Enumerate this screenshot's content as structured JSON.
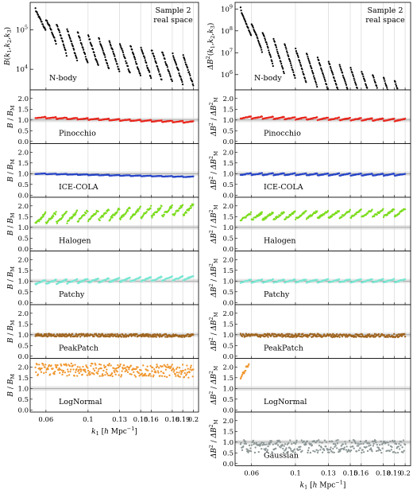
{
  "figure": {
    "corner_label_line1": "Sample 2",
    "corner_label_line2": "real space",
    "x_axis_label": "k",
    "x_axis_label_sub": "1",
    "x_axis_label_units": " [h Mpc",
    "x_axis_label_units_exp": "−1",
    "x_axis_label_close": "]"
  },
  "colors": {
    "N-body": "#000000",
    "Pinocchio": "#e8281e",
    "ICE-COLA": "#2846c8",
    "Halogen": "#7cdc1e",
    "Patchy": "#78e6d2",
    "PeakPatch": "#a0641e",
    "LogNormal": "#f0962d",
    "Gaussian": "#8c9696",
    "gridline": "#d0d0d0",
    "band": "#e6e6e6"
  },
  "chart_data": [
    {
      "type": "scatter",
      "panel": "left",
      "title": "",
      "xlabel": "k1 [h Mpc^-1]",
      "x_ticks": [
        0.06,
        0.1,
        0.13,
        0.15,
        0.16,
        0.18,
        0.19,
        0.2
      ],
      "x_tick_labels": [
        "0.06",
        "0.1",
        "0.13",
        "0.15",
        "0.16",
        "0.18",
        "0.19",
        "0.2"
      ],
      "xlim": [
        0.045,
        0.205
      ],
      "top": {
        "name": "N-body",
        "ylabel": "B(k1,k2,k3)",
        "yscale": "log",
        "ylim": [
          3000,
          500000
        ],
        "y_ticks": [
          10000,
          100000
        ],
        "y_tick_labels": [
          "10^4",
          "10^5"
        ],
        "start_value": 350000,
        "end_value": 20000,
        "triangle_spread_decades": 0.75
      },
      "ratio_panels": [
        {
          "name": "Pinocchio",
          "ylabel": "B / B_M",
          "mean_start": 1.12,
          "mean_end": 0.9,
          "spread": 0.08
        },
        {
          "name": "ICE-COLA",
          "ylabel": "B / B_M",
          "mean_start": 1.0,
          "mean_end": 0.85,
          "spread": 0.04
        },
        {
          "name": "Halogen",
          "ylabel": "B / B_M",
          "mean_start": 1.4,
          "mean_end": 1.85,
          "spread": 0.5
        },
        {
          "name": "Patchy",
          "ylabel": "B / B_M",
          "mean_start": 0.95,
          "mean_end": 1.15,
          "spread": 0.2
        },
        {
          "name": "PeakPatch",
          "ylabel": "B / B_M",
          "mean_start": 0.98,
          "mean_end": 0.96,
          "spread": 0.07
        },
        {
          "name": "LogNormal",
          "ylabel": "B / B_M",
          "mean_start": 1.9,
          "mean_end": 1.8,
          "spread": 0.3
        }
      ],
      "ratio_ylim": [
        -0.1,
        2.4
      ],
      "ratio_y_ticks": [
        0.0,
        0.5,
        1.0,
        1.5,
        2.0
      ],
      "ratio_y_tick_labels": [
        "0.0",
        "0.5",
        "1.0",
        "1.5",
        "2.0"
      ]
    },
    {
      "type": "scatter",
      "panel": "right",
      "title": "",
      "xlabel": "k1 [h Mpc^-1]",
      "x_ticks": [
        0.06,
        0.1,
        0.13,
        0.15,
        0.16,
        0.18,
        0.19,
        0.2
      ],
      "x_tick_labels": [
        "0.06",
        "0.1",
        "0.13",
        "0.15",
        "0.16",
        "0.18",
        "0.19",
        "0.2"
      ],
      "xlim": [
        0.045,
        0.205
      ],
      "top": {
        "name": "N-body",
        "ylabel": "ΔB²(k1,k2,k3)",
        "yscale": "log",
        "ylim": [
          200000,
          2000000000
        ],
        "y_ticks": [
          1000000,
          10000000,
          100000000,
          1000000000
        ],
        "y_tick_labels": [
          "10^6",
          "10^7",
          "10^8",
          "10^9"
        ],
        "start_value": 1200000000,
        "end_value": 400000,
        "triangle_spread_decades": 1.4
      },
      "ratio_panels": [
        {
          "name": "Pinocchio",
          "ylabel": "ΔB² / ΔB²_M",
          "mean_start": 1.12,
          "mean_end": 1.0,
          "spread": 0.12
        },
        {
          "name": "ICE-COLA",
          "ylabel": "ΔB² / ΔB²_M",
          "mean_start": 0.98,
          "mean_end": 0.95,
          "spread": 0.1
        },
        {
          "name": "Halogen",
          "ylabel": "ΔB² / ΔB²_M",
          "mean_start": 1.5,
          "mean_end": 1.7,
          "spread": 0.35
        },
        {
          "name": "Patchy",
          "ylabel": "ΔB² / ΔB²_M",
          "mean_start": 1.0,
          "mean_end": 1.02,
          "spread": 0.15
        },
        {
          "name": "PeakPatch",
          "ylabel": "ΔB² / ΔB²_M",
          "mean_start": 0.97,
          "mean_end": 0.96,
          "spread": 0.08
        },
        {
          "name": "LogNormal",
          "ylabel": "ΔB² / ΔB²_M",
          "mean_start": 1.5,
          "mean_end": 2.2,
          "spread": 0.25,
          "x_max": 0.058
        },
        {
          "name": "Gaussian",
          "ylabel": "ΔB² / ΔB²_M",
          "mean_start": 0.8,
          "mean_end": 0.8,
          "spread": 0.3
        }
      ],
      "ratio_ylim": [
        -0.1,
        2.4
      ],
      "ratio_y_ticks": [
        0.0,
        0.5,
        1.0,
        1.5,
        2.0
      ],
      "ratio_y_tick_labels": [
        "0.0",
        "0.5",
        "1.0",
        "1.5",
        "2.0"
      ]
    }
  ]
}
